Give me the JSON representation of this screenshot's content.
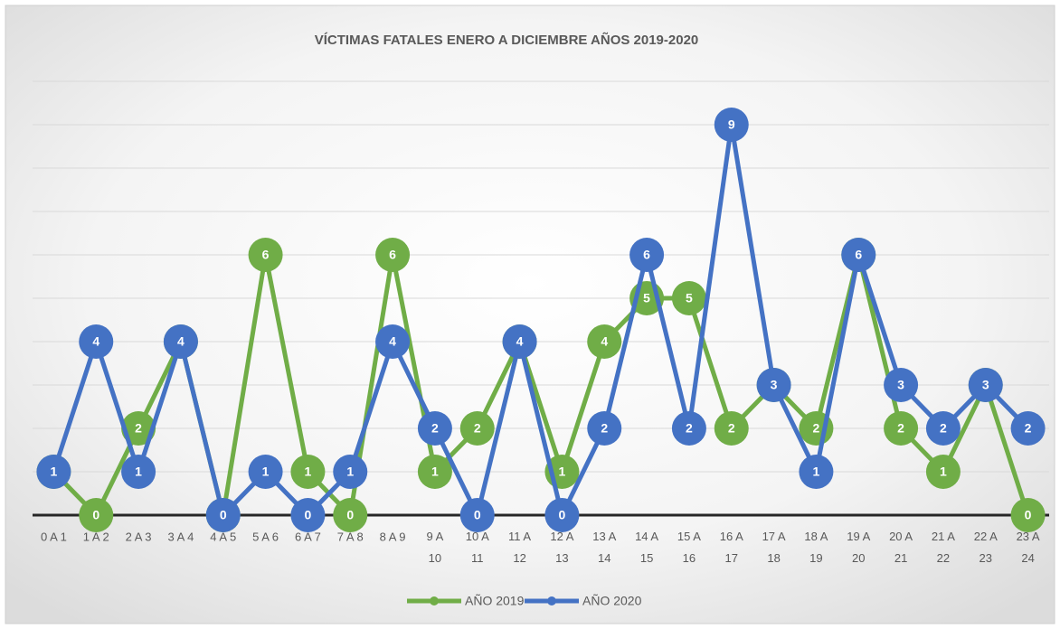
{
  "chart_data": {
    "type": "line",
    "title": "VÍCTIMAS FATALES ENERO A DICIEMBRE AÑOS 2019-2020",
    "categories": [
      "0 A 1",
      "1 A 2",
      "2 A 3",
      "3 A 4",
      "4 A 5",
      "5 A 6",
      "6 A 7",
      "7 A 8",
      "8 A 9",
      "9 A 10",
      "10 A 11",
      "11 A 12",
      "12 A 13",
      "13 A 14",
      "14 A 15",
      "15 A 16",
      "16 A 17",
      "17 A 18",
      "18 A 19",
      "19 A 20",
      "20 A 21",
      "21 A 22",
      "22 A 23",
      "23 A 24"
    ],
    "series": [
      {
        "name": "AÑO 2019",
        "color": "#70ad47",
        "values": [
          1,
          0,
          2,
          4,
          0,
          6,
          1,
          0,
          6,
          1,
          2,
          4,
          1,
          4,
          5,
          5,
          2,
          3,
          2,
          6,
          2,
          1,
          3,
          0
        ]
      },
      {
        "name": "AÑO 2020",
        "color": "#4472c4",
        "values": [
          1,
          4,
          1,
          4,
          0,
          1,
          0,
          1,
          4,
          2,
          0,
          4,
          0,
          2,
          6,
          2,
          9,
          3,
          1,
          6,
          3,
          2,
          3,
          2
        ]
      }
    ],
    "ylim": [
      0,
      10
    ],
    "yticks": [
      0,
      1,
      2,
      3,
      4,
      5,
      6,
      7,
      8,
      9,
      10
    ],
    "grid": true,
    "legend": "bottom"
  }
}
